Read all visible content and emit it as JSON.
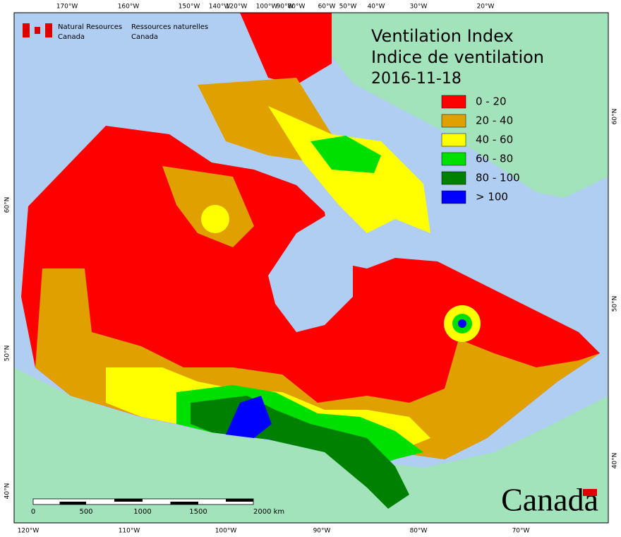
{
  "header": {
    "agency_en": [
      "Natural Resources",
      "Canada"
    ],
    "agency_fr": [
      "Ressources naturelles",
      "Canada"
    ]
  },
  "title": [
    "Ventilation Index",
    "Indice de ventilation",
    "2016-11-18"
  ],
  "legend": [
    {
      "label": "0 - 20",
      "color": "#ff0000"
    },
    {
      "label": "20 - 40",
      "color": "#e0a000"
    },
    {
      "label": "40 - 60",
      "color": "#ffff00"
    },
    {
      "label": "60 - 80",
      "color": "#00e000"
    },
    {
      "label": "80 - 100",
      "color": "#008000"
    },
    {
      "label": "> 100",
      "color": "#0000ff"
    }
  ],
  "scale_bar": {
    "labels": [
      "0",
      "500",
      "1000",
      "1500",
      "2000 km"
    ]
  },
  "graticule": {
    "top": [
      "170°W",
      "160°W",
      "150°W",
      "140°W",
      "120°W",
      "100°W",
      "90°W",
      "80°W",
      "60°W",
      "50°W",
      "40°W",
      "30°W",
      "20°W"
    ],
    "bottom": [
      "120°W",
      "110°W",
      "100°W",
      "90°W",
      "80°W",
      "70°W"
    ],
    "left": [
      "60°N",
      "50°N",
      "40°N"
    ],
    "right": [
      "60°N",
      "50°N",
      "40°N"
    ]
  },
  "wordmark": "Canada"
}
